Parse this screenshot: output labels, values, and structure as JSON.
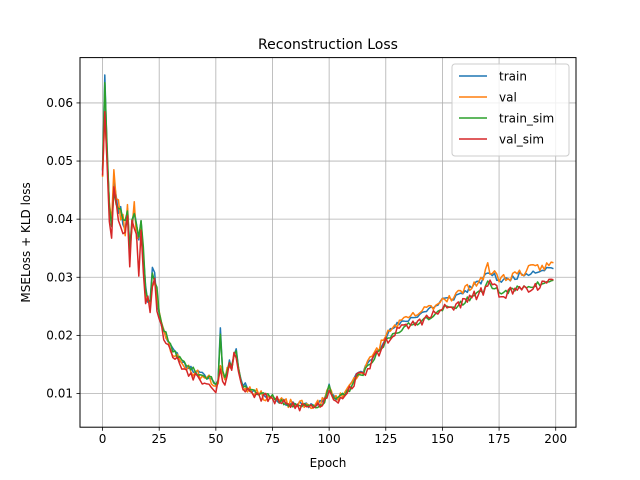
{
  "chart_data": {
    "type": "line",
    "title": "Reconstruction Loss",
    "xlabel": "Epoch",
    "ylabel": "MSELoss + KLD loss",
    "xlim": [
      -9.95,
      208.95
    ],
    "ylim": [
      0.0042,
      0.0678
    ],
    "xticks": [
      0,
      25,
      50,
      75,
      100,
      125,
      150,
      175,
      200
    ],
    "yticks": [
      0.01,
      0.02,
      0.03,
      0.04,
      0.05,
      0.06
    ],
    "ytick_labels": [
      "0.01",
      "0.02",
      "0.03",
      "0.04",
      "0.05",
      "0.06"
    ],
    "grid": true,
    "legend": "top-right",
    "keypoints": [
      [
        0,
        0.049
      ],
      [
        1,
        0.0645
      ],
      [
        2,
        0.052
      ],
      [
        3,
        0.043
      ],
      [
        4,
        0.04
      ],
      [
        5,
        0.046
      ],
      [
        6,
        0.043
      ],
      [
        8,
        0.0415
      ],
      [
        10,
        0.039
      ],
      [
        11,
        0.041
      ],
      [
        12,
        0.036
      ],
      [
        14,
        0.042
      ],
      [
        16,
        0.036
      ],
      [
        17,
        0.04
      ],
      [
        19,
        0.028
      ],
      [
        20,
        0.026
      ],
      [
        21,
        0.027
      ],
      [
        22,
        0.031
      ],
      [
        23,
        0.03
      ],
      [
        25,
        0.024
      ],
      [
        26,
        0.022
      ],
      [
        28,
        0.02
      ],
      [
        30,
        0.018
      ],
      [
        35,
        0.0155
      ],
      [
        40,
        0.014
      ],
      [
        45,
        0.013
      ],
      [
        48,
        0.0125
      ],
      [
        50,
        0.0115
      ],
      [
        51,
        0.0125
      ],
      [
        52,
        0.0205
      ],
      [
        53,
        0.0135
      ],
      [
        54,
        0.0125
      ],
      [
        56,
        0.0155
      ],
      [
        57,
        0.0145
      ],
      [
        58,
        0.017
      ],
      [
        59,
        0.0175
      ],
      [
        60,
        0.0145
      ],
      [
        61,
        0.0125
      ],
      [
        62,
        0.0115
      ],
      [
        65,
        0.011
      ],
      [
        70,
        0.0098
      ],
      [
        75,
        0.0095
      ],
      [
        78,
        0.0088
      ],
      [
        80,
        0.0085
      ],
      [
        85,
        0.0082
      ],
      [
        90,
        0.008
      ],
      [
        95,
        0.0082
      ],
      [
        98,
        0.0088
      ],
      [
        100,
        0.0112
      ],
      [
        101,
        0.0102
      ],
      [
        103,
        0.009
      ],
      [
        105,
        0.0098
      ],
      [
        108,
        0.0105
      ],
      [
        110,
        0.012
      ],
      [
        113,
        0.0135
      ],
      [
        115,
        0.014
      ],
      [
        118,
        0.0155
      ],
      [
        120,
        0.0168
      ],
      [
        123,
        0.0185
      ],
      [
        125,
        0.0198
      ],
      [
        128,
        0.0212
      ],
      [
        130,
        0.0218
      ],
      [
        133,
        0.0222
      ],
      [
        135,
        0.0228
      ],
      [
        138,
        0.0232
      ],
      [
        140,
        0.0238
      ],
      [
        143,
        0.0242
      ],
      [
        145,
        0.0248
      ],
      [
        148,
        0.0252
      ],
      [
        150,
        0.0262
      ],
      [
        152,
        0.0262
      ],
      [
        155,
        0.0265
      ],
      [
        158,
        0.0272
      ],
      [
        160,
        0.0275
      ],
      [
        163,
        0.0285
      ],
      [
        165,
        0.0288
      ],
      [
        168,
        0.0295
      ],
      [
        170,
        0.031
      ],
      [
        172,
        0.0305
      ],
      [
        175,
        0.0295
      ],
      [
        178,
        0.0295
      ],
      [
        180,
        0.0298
      ],
      [
        183,
        0.0302
      ],
      [
        185,
        0.0305
      ],
      [
        188,
        0.0308
      ],
      [
        190,
        0.031
      ],
      [
        193,
        0.0312
      ],
      [
        195,
        0.0315
      ],
      [
        197,
        0.0315
      ],
      [
        199,
        0.0318
      ]
    ],
    "series": [
      {
        "name": "train",
        "color": "#1f77b4",
        "offset": [
          [
            0,
            0.0
          ],
          [
            100,
            0.0
          ],
          [
            199,
            0.0
          ]
        ],
        "overrides": [
          [
            1,
            0.0648
          ],
          [
            52,
            0.0213
          ]
        ],
        "seed": 11,
        "noise": 0.0005
      },
      {
        "name": "val",
        "color": "#ff7f0e",
        "offset": [
          [
            0,
            -0.0005
          ],
          [
            100,
            0.0
          ],
          [
            199,
            0.0005
          ]
        ],
        "overrides": [
          [
            1,
            0.058
          ],
          [
            5,
            0.0485
          ],
          [
            14,
            0.043
          ],
          [
            52,
            0.0148
          ],
          [
            170,
            0.0325
          ],
          [
            199,
            0.0325
          ]
        ],
        "seed": 23,
        "noise": 0.0008
      },
      {
        "name": "train_sim",
        "color": "#2ca02c",
        "offset": [
          [
            0,
            0.0002
          ],
          [
            100,
            -0.0002
          ],
          [
            150,
            -0.0015
          ],
          [
            199,
            -0.0025
          ]
        ],
        "overrides": [
          [
            1,
            0.0635
          ],
          [
            52,
            0.0202
          ]
        ],
        "seed": 37,
        "noise": 0.0005
      },
      {
        "name": "val_sim",
        "color": "#d62728",
        "offset": [
          [
            0,
            -0.0012
          ],
          [
            100,
            -0.0002
          ],
          [
            150,
            -0.0015
          ],
          [
            199,
            -0.0028
          ]
        ],
        "overrides": [
          [
            0,
            0.0475
          ],
          [
            1,
            0.0585
          ],
          [
            12,
            0.0318
          ],
          [
            16,
            0.0302
          ],
          [
            52,
            0.0142
          ]
        ],
        "seed": 53,
        "noise": 0.0009
      }
    ]
  }
}
